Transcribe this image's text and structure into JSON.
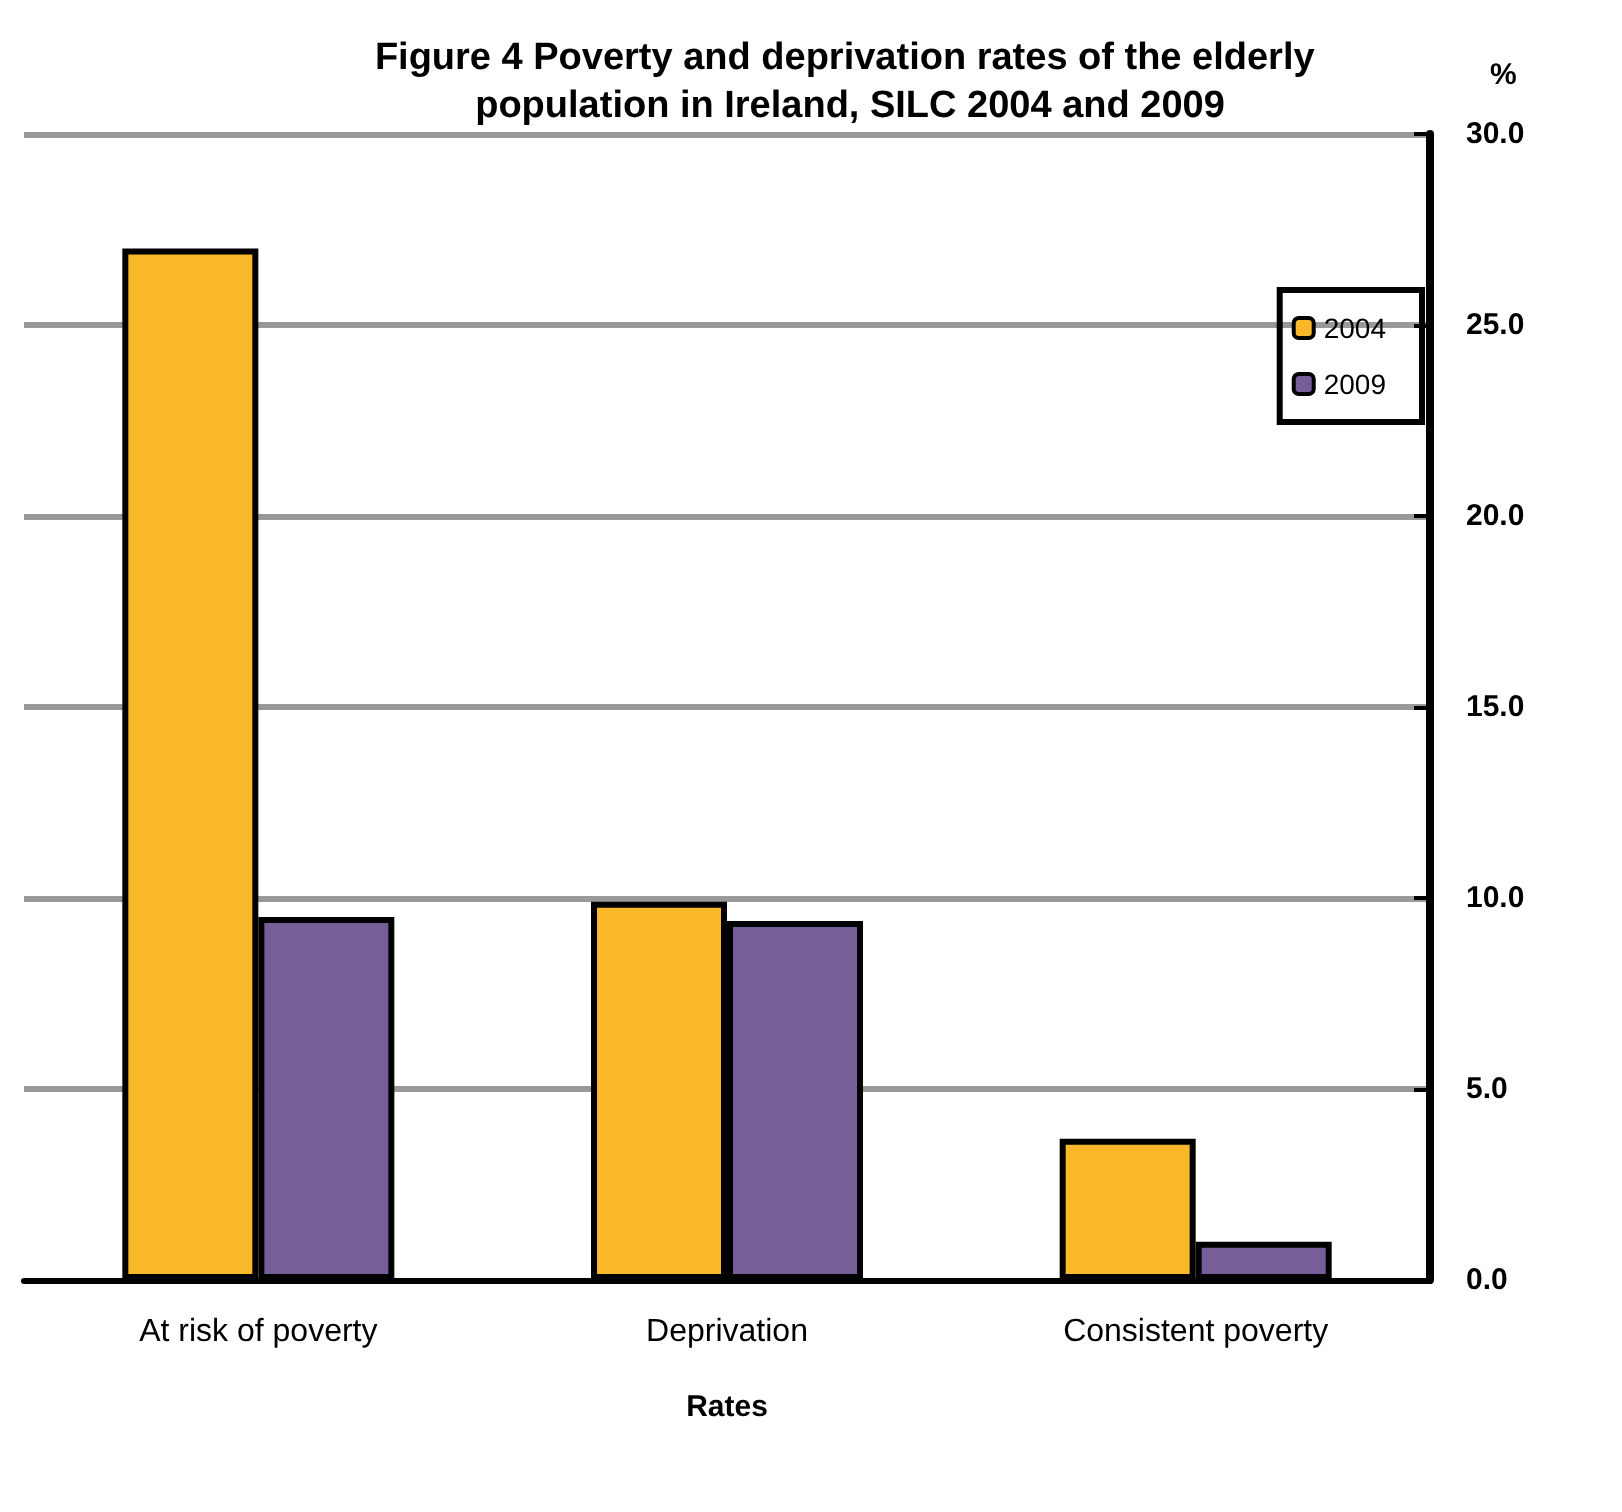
{
  "chart_data": {
    "type": "bar",
    "title": "Figure 4 Poverty and deprivation rates of the elderly population in Ireland, SILC 2004 and 2009",
    "categories": [
      "At risk of poverty",
      "Deprivation",
      "Consistent poverty"
    ],
    "series": [
      {
        "name": "2004",
        "color": "#f9b72a",
        "values": [
          27.0,
          9.9,
          3.7
        ]
      },
      {
        "name": "2009",
        "color": "#765f99",
        "values": [
          9.5,
          9.4,
          1.0
        ]
      }
    ],
    "xlabel": "Rates",
    "ylabel": "%",
    "ylim": [
      0,
      30
    ],
    "yticks": [
      {
        "value": 0,
        "label": "0.0"
      },
      {
        "value": 5,
        "label": "5.0"
      },
      {
        "value": 10,
        "label": "10.0"
      },
      {
        "value": 15,
        "label": "15.0"
      },
      {
        "value": 20,
        "label": "20.0"
      },
      {
        "value": 25,
        "label": "25.0"
      },
      {
        "value": 30,
        "label": "30.0"
      }
    ],
    "grid": "y",
    "legend": "top right"
  }
}
